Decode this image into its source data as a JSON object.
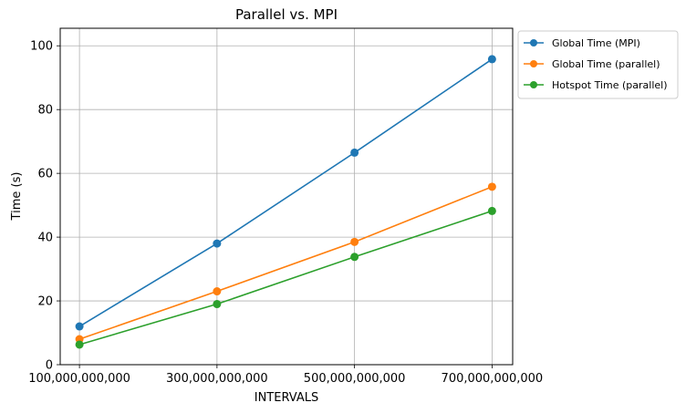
{
  "chart_data": {
    "type": "line",
    "title": "Parallel vs. MPI",
    "xlabel": "INTERVALS",
    "ylabel": "Time (s)",
    "x": [
      100000000000,
      300000000000,
      500000000000,
      700000000000
    ],
    "xtick_labels": [
      "100,000,000,000",
      "300,000,000,000",
      "500,000,000,000",
      "700,000,000,000"
    ],
    "xlim": [
      72000000000,
      730000000000
    ],
    "ylim": [
      0,
      105.5
    ],
    "yticks": [
      0,
      20,
      40,
      60,
      80,
      100
    ],
    "grid": true,
    "legend_position": "outside-top-right",
    "series": [
      {
        "name": "Global Time (MPI)",
        "color": "#1f77b4",
        "values": [
          12.0,
          38.0,
          66.5,
          95.8
        ]
      },
      {
        "name": "Global Time (parallel)",
        "color": "#ff7f0e",
        "values": [
          8.0,
          23.0,
          38.5,
          55.8
        ]
      },
      {
        "name": "Hotspot Time (parallel)",
        "color": "#2ca02c",
        "values": [
          6.3,
          19.0,
          33.8,
          48.2
        ]
      }
    ]
  }
}
